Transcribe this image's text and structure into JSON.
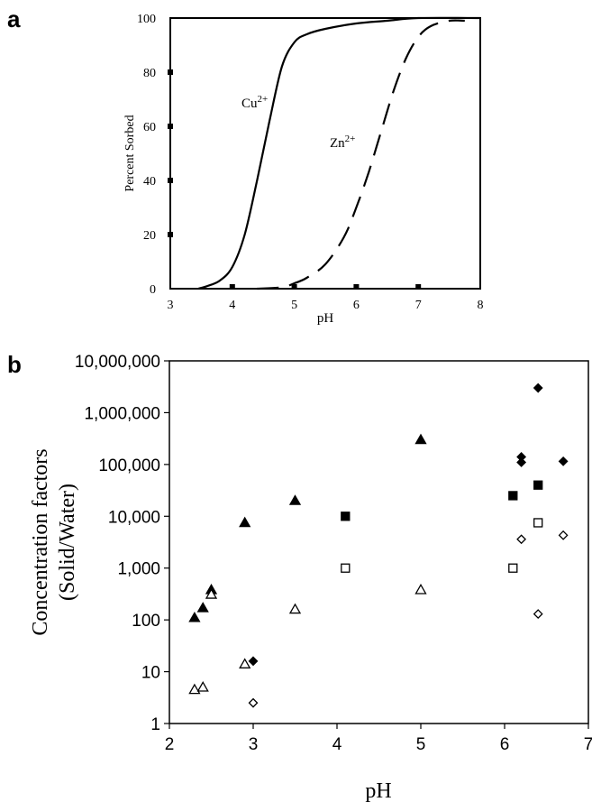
{
  "chart_data": [
    {
      "panel": "a",
      "type": "line",
      "xlabel": "pH",
      "ylabel": "Percent Sorbed",
      "xlim": [
        3,
        8
      ],
      "ylim": [
        0,
        100
      ],
      "xticks": [
        3,
        4,
        5,
        6,
        7,
        8
      ],
      "yticks": [
        0,
        20,
        40,
        60,
        80,
        100
      ],
      "series": [
        {
          "name": "Cu2+",
          "label_main": "Cu",
          "label_sup": "2+",
          "style": "solid",
          "x": [
            3.45,
            3.6,
            3.8,
            4.0,
            4.2,
            4.4,
            4.6,
            4.8,
            5.0,
            5.2,
            5.5,
            6.0,
            6.5,
            7.0,
            8.0
          ],
          "y": [
            0,
            1,
            3,
            8,
            20,
            40,
            62,
            82,
            91,
            94,
            96,
            98,
            99,
            100,
            100
          ]
        },
        {
          "name": "Zn2+",
          "label_main": "Zn",
          "label_sup": "2+",
          "style": "dashed",
          "x": [
            4.4,
            4.8,
            5.0,
            5.2,
            5.5,
            5.8,
            6.0,
            6.2,
            6.4,
            6.6,
            6.8,
            7.0,
            7.2,
            7.5,
            7.75
          ],
          "y": [
            0,
            0.5,
            2,
            4,
            9,
            19,
            30,
            43,
            58,
            73,
            85,
            93,
            97,
            99,
            99
          ]
        }
      ]
    },
    {
      "panel": "b",
      "type": "scatter",
      "xlabel": "pH",
      "ylabel_line1": "Concentration factors",
      "ylabel_line2": "(Solid/Water)",
      "xlim": [
        2,
        7
      ],
      "ylim": [
        1,
        10000000
      ],
      "yscale": "log",
      "xticks": [
        "2",
        "3",
        "4",
        "5",
        "6",
        "7"
      ],
      "yticks": [
        "1",
        "10",
        "100",
        "1,000",
        "10,000",
        "100,000",
        "1,000,000",
        "10,000,000"
      ],
      "series": [
        {
          "marker": "triangle-filled",
          "points": [
            [
              2.3,
              110
            ],
            [
              2.4,
              170
            ],
            [
              2.5,
              380
            ],
            [
              2.9,
              7500
            ],
            [
              3.5,
              20000
            ],
            [
              5.0,
              300000
            ]
          ]
        },
        {
          "marker": "triangle-open",
          "points": [
            [
              2.3,
              4.5
            ],
            [
              2.4,
              5
            ],
            [
              2.5,
              310
            ],
            [
              2.9,
              14
            ],
            [
              3.5,
              160
            ],
            [
              5.0,
              380
            ]
          ]
        },
        {
          "marker": "square-filled",
          "points": [
            [
              4.1,
              10000
            ],
            [
              6.1,
              25000
            ],
            [
              6.4,
              40000
            ]
          ]
        },
        {
          "marker": "square-open",
          "points": [
            [
              4.1,
              1000
            ],
            [
              6.1,
              1000
            ],
            [
              6.4,
              7500
            ]
          ]
        },
        {
          "marker": "diamond-filled",
          "points": [
            [
              3.0,
              16
            ],
            [
              6.2,
              140000
            ],
            [
              6.2,
              110000
            ],
            [
              6.4,
              3000000
            ],
            [
              6.7,
              115000
            ]
          ]
        },
        {
          "marker": "diamond-open",
          "points": [
            [
              3.0,
              2.5
            ],
            [
              6.2,
              3600
            ],
            [
              6.4,
              130
            ],
            [
              6.7,
              4300
            ]
          ]
        }
      ]
    }
  ]
}
